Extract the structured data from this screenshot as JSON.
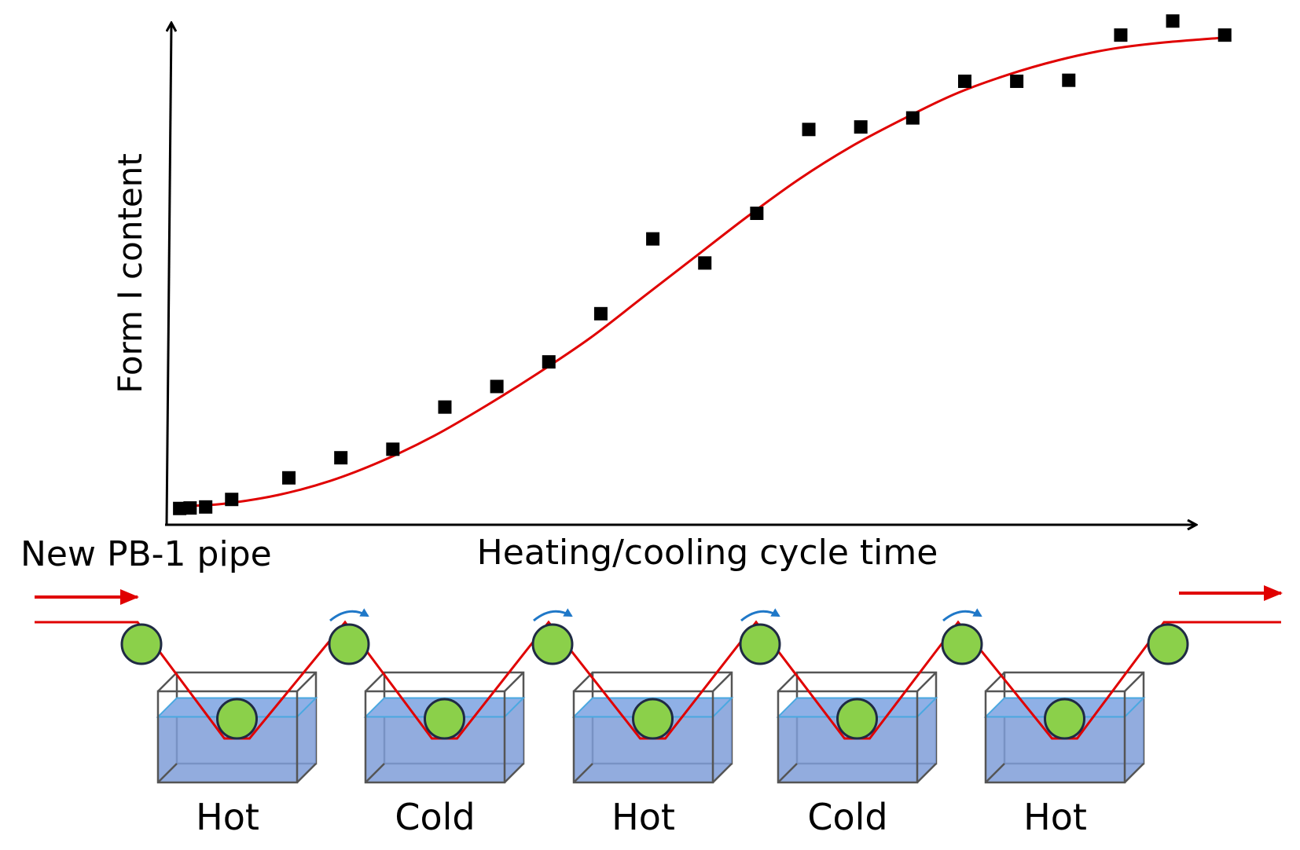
{
  "chart_data": {
    "type": "scatter",
    "xlabel": "Heating/cooling cycle time",
    "ylabel": "Form I content",
    "xlim": [
      0,
      20
    ],
    "ylim": [
      0,
      100
    ],
    "grid": false,
    "series": [
      {
        "kind": "points",
        "color": "#000000",
        "points": [
          [
            0.1,
            4.5
          ],
          [
            0.3,
            4.6
          ],
          [
            0.6,
            4.8
          ],
          [
            1.1,
            6.3
          ],
          [
            2.2,
            10.6
          ],
          [
            3.2,
            14.6
          ],
          [
            4.2,
            16.3
          ],
          [
            5.2,
            24.7
          ],
          [
            6.2,
            28.8
          ],
          [
            7.2,
            33.7
          ],
          [
            8.2,
            43.3
          ],
          [
            9.2,
            58.2
          ],
          [
            10.2,
            53.4
          ],
          [
            11.2,
            63.3
          ],
          [
            12.2,
            80.0
          ],
          [
            13.2,
            80.5
          ],
          [
            14.2,
            82.3
          ],
          [
            15.2,
            89.6
          ],
          [
            16.2,
            89.6
          ],
          [
            17.2,
            89.8
          ],
          [
            18.2,
            98.8
          ],
          [
            19.2,
            101.6
          ],
          [
            20.2,
            98.8
          ]
        ]
      },
      {
        "kind": "fit-curve",
        "color": "#e00000",
        "points": [
          [
            0.3,
            5.0
          ],
          [
            1.0,
            5.5
          ],
          [
            2.0,
            7.2
          ],
          [
            3.0,
            10.0
          ],
          [
            4.0,
            14.0
          ],
          [
            5.0,
            19.0
          ],
          [
            6.0,
            25.0
          ],
          [
            7.0,
            31.5
          ],
          [
            8.0,
            38.5
          ],
          [
            9.0,
            46.5
          ],
          [
            10.0,
            54.5
          ],
          [
            11.0,
            62.5
          ],
          [
            12.0,
            70.0
          ],
          [
            13.0,
            76.5
          ],
          [
            14.0,
            82.0
          ],
          [
            15.0,
            87.0
          ],
          [
            16.0,
            90.8
          ],
          [
            17.0,
            93.8
          ],
          [
            18.0,
            96.0
          ],
          [
            19.0,
            97.3
          ],
          [
            20.2,
            98.3
          ]
        ]
      }
    ]
  },
  "diagram": {
    "inlet_label": "New PB-1 pipe",
    "tanks": [
      {
        "label": "Hot"
      },
      {
        "label": "Cold"
      },
      {
        "label": "Hot"
      },
      {
        "label": "Cold"
      },
      {
        "label": "Hot"
      }
    ],
    "colors": {
      "pipe": "#e00000",
      "roller_fill": "#8bd04a",
      "roller_stroke": "#1f2a44",
      "water": "#7f9ed8",
      "tank_edge": "#555555",
      "rotation_arrow": "#1f78c8"
    }
  }
}
